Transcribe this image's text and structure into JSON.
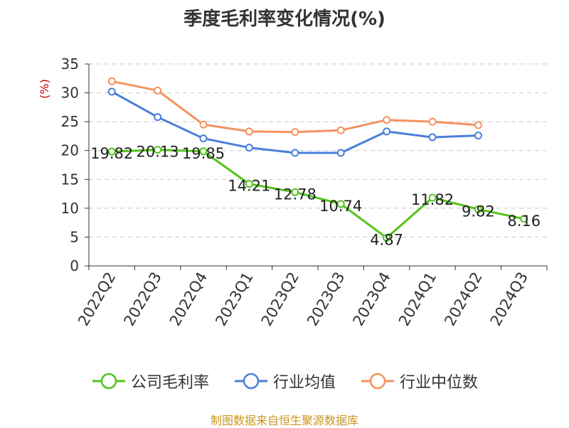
{
  "title": "季度毛利率变化情况(%)",
  "source": "制图数据来自恒生聚源数据库",
  "chart_data": {
    "type": "line",
    "title": "季度毛利率变化情况(%)",
    "ylabel": "(%)",
    "xlabel": "",
    "categories": [
      "2022Q2",
      "2022Q3",
      "2022Q4",
      "2023Q1",
      "2023Q2",
      "2023Q3",
      "2023Q4",
      "2024Q1",
      "2024Q2",
      "2024Q3"
    ],
    "ylim": [
      0,
      35
    ],
    "yticks": [
      0,
      5,
      10,
      15,
      20,
      25,
      30,
      35
    ],
    "grid": "horizontal dashed",
    "legend_position": "bottom",
    "series": [
      {
        "name": "公司毛利率",
        "color": "#52c41a",
        "show_labels": true,
        "values": [
          19.82,
          20.13,
          19.85,
          14.21,
          12.78,
          10.74,
          4.87,
          11.82,
          9.82,
          8.16
        ]
      },
      {
        "name": "行业均值",
        "color": "#4a7fd8",
        "show_labels": false,
        "values": [
          30.2,
          25.8,
          22.1,
          20.5,
          19.6,
          19.6,
          23.3,
          22.3,
          22.6,
          null
        ]
      },
      {
        "name": "行业中位数",
        "color": "#f5925e",
        "show_labels": false,
        "values": [
          32.0,
          30.4,
          24.5,
          23.3,
          23.2,
          23.5,
          25.3,
          25.0,
          24.4,
          null
        ]
      }
    ]
  }
}
